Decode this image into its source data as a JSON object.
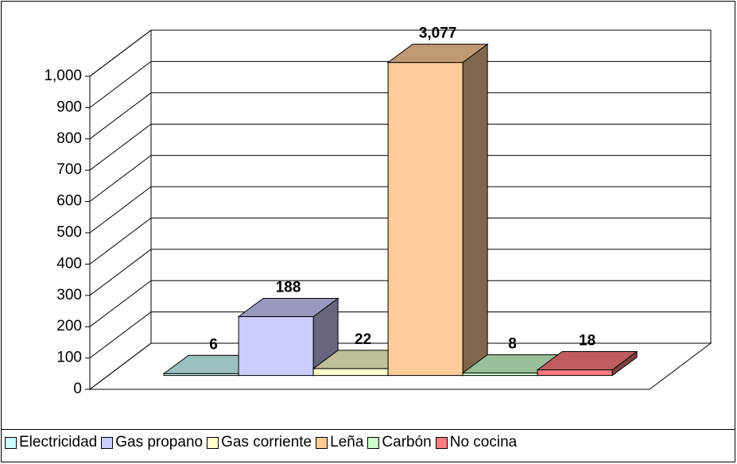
{
  "chart_data": {
    "type": "bar",
    "three_d": true,
    "categories": [
      "Electricidad",
      "Gas propano",
      "Gas corriente",
      "Leña",
      "Carbón",
      "No cocina"
    ],
    "values": [
      6,
      188,
      22,
      3077,
      8,
      18
    ],
    "value_labels": [
      "6",
      "188",
      "22",
      "3,077",
      "8",
      "18"
    ],
    "colors": [
      "#CCFFFF",
      "#CCCCFF",
      "#FFFFCC",
      "#FFCC99",
      "#CCFFCC",
      "#FF7C80"
    ],
    "ylim": [
      0,
      1000
    ],
    "yticks": [
      0,
      100,
      200,
      300,
      400,
      500,
      600,
      700,
      800,
      900,
      {
        "value": 1000,
        "label": "1,000"
      }
    ],
    "grid": true,
    "legend": "bottom"
  }
}
